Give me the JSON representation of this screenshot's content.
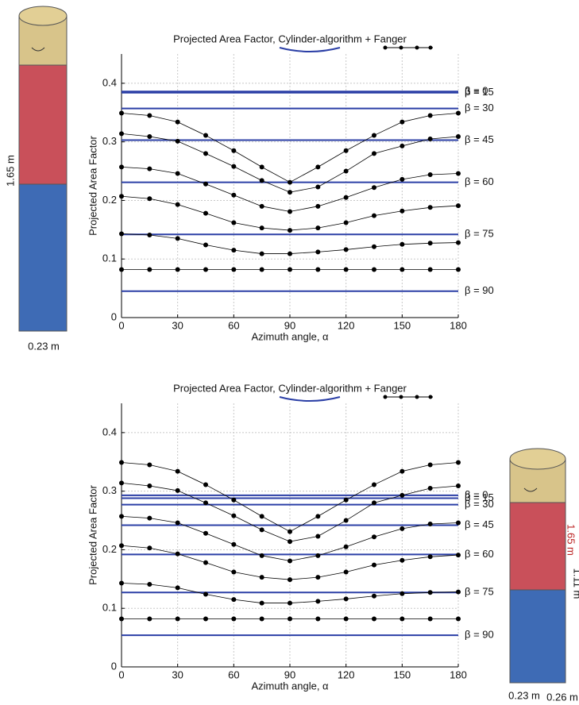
{
  "chart_data": [
    {
      "type": "line",
      "title": "Projected Area Factor, Cylinder-algorithm + Fanger",
      "xlabel": "Azimuth angle, α",
      "ylabel": "Projected Area Factor",
      "x": [
        0,
        15,
        30,
        45,
        60,
        75,
        90,
        105,
        120,
        135,
        150,
        165,
        180
      ],
      "xlim": [
        0,
        180
      ],
      "xticks": [
        0,
        30,
        60,
        90,
        120,
        150,
        180
      ],
      "ylim": [
        0,
        0.45
      ],
      "yticks": [
        0,
        0.1,
        0.2,
        0.3,
        0.4
      ],
      "grid": true,
      "series": [
        {
          "color": "#000000",
          "values": [
            0.349,
            0.345,
            0.334,
            0.311,
            0.285,
            0.257,
            0.231,
            0.257,
            0.285,
            0.311,
            0.334,
            0.345,
            0.349
          ]
        },
        {
          "color": "#000000",
          "values": [
            0.314,
            0.309,
            0.301,
            0.28,
            0.258,
            0.234,
            0.214,
            0.223,
            0.25,
            0.28,
            0.293,
            0.305,
            0.309
          ]
        },
        {
          "color": "#000000",
          "values": [
            0.257,
            0.254,
            0.246,
            0.228,
            0.209,
            0.19,
            0.181,
            0.19,
            0.205,
            0.222,
            0.236,
            0.244,
            0.246
          ]
        },
        {
          "color": "#000000",
          "values": [
            0.207,
            0.203,
            0.193,
            0.178,
            0.162,
            0.153,
            0.149,
            0.153,
            0.162,
            0.174,
            0.182,
            0.188,
            0.191
          ]
        },
        {
          "color": "#000000",
          "values": [
            0.143,
            0.141,
            0.135,
            0.124,
            0.115,
            0.109,
            0.109,
            0.112,
            0.116,
            0.121,
            0.125,
            0.127,
            0.128
          ]
        },
        {
          "color": "#000000",
          "values": [
            0.082,
            0.082,
            0.082,
            0.082,
            0.082,
            0.082,
            0.082,
            0.082,
            0.082,
            0.082,
            0.082,
            0.082,
            0.082
          ]
        }
      ],
      "hline_color": "#2b3fa6",
      "hlines": [
        {
          "value": 0.386,
          "label": "β = 0"
        },
        {
          "value": 0.384,
          "label": "β = 15"
        },
        {
          "value": 0.357,
          "label": "β = 30"
        },
        {
          "value": 0.303,
          "label": "β = 45"
        },
        {
          "value": 0.231,
          "label": "β = 60"
        },
        {
          "value": 0.142,
          "label": "β = 75"
        },
        {
          "value": 0.045,
          "label": "β = 90"
        }
      ],
      "annotations": [
        "1.65 m",
        "0.23 m"
      ]
    },
    {
      "type": "line",
      "title": "Projected Area Factor, Cylinder-algorithm + Fanger",
      "xlabel": "Azimuth angle, α",
      "ylabel": "Projected Area Factor",
      "x": [
        0,
        15,
        30,
        45,
        60,
        75,
        90,
        105,
        120,
        135,
        150,
        165,
        180
      ],
      "xlim": [
        0,
        180
      ],
      "xticks": [
        0,
        30,
        60,
        90,
        120,
        150,
        180
      ],
      "ylim": [
        0,
        0.45
      ],
      "yticks": [
        0,
        0.1,
        0.2,
        0.3,
        0.4
      ],
      "grid": true,
      "series": [
        {
          "color": "#000000",
          "values": [
            0.349,
            0.345,
            0.334,
            0.311,
            0.285,
            0.257,
            0.231,
            0.257,
            0.285,
            0.311,
            0.334,
            0.345,
            0.349
          ]
        },
        {
          "color": "#000000",
          "values": [
            0.314,
            0.309,
            0.301,
            0.28,
            0.258,
            0.234,
            0.214,
            0.223,
            0.25,
            0.28,
            0.293,
            0.305,
            0.309
          ]
        },
        {
          "color": "#000000",
          "values": [
            0.257,
            0.254,
            0.246,
            0.228,
            0.209,
            0.19,
            0.181,
            0.19,
            0.205,
            0.222,
            0.236,
            0.244,
            0.246
          ]
        },
        {
          "color": "#000000",
          "values": [
            0.207,
            0.203,
            0.193,
            0.178,
            0.162,
            0.153,
            0.149,
            0.153,
            0.162,
            0.174,
            0.182,
            0.188,
            0.191
          ]
        },
        {
          "color": "#000000",
          "values": [
            0.143,
            0.141,
            0.135,
            0.124,
            0.115,
            0.109,
            0.109,
            0.112,
            0.116,
            0.121,
            0.125,
            0.127,
            0.128
          ]
        },
        {
          "color": "#000000",
          "values": [
            0.082,
            0.082,
            0.082,
            0.082,
            0.082,
            0.082,
            0.082,
            0.082,
            0.082,
            0.082,
            0.082,
            0.082,
            0.082
          ]
        }
      ],
      "hline_color": "#2b3fa6",
      "hlines": [
        {
          "value": 0.293,
          "label": "β = 0"
        },
        {
          "value": 0.288,
          "label": "β = 15"
        },
        {
          "value": 0.277,
          "label": "β = 30"
        },
        {
          "value": 0.242,
          "label": "β = 45"
        },
        {
          "value": 0.192,
          "label": "β = 60"
        },
        {
          "value": 0.127,
          "label": "β = 75"
        },
        {
          "value": 0.054,
          "label": "β = 90"
        }
      ],
      "annotations": [
        "1.65 m",
        "1.11 m",
        "0.23 m",
        "0.26 m"
      ]
    }
  ]
}
